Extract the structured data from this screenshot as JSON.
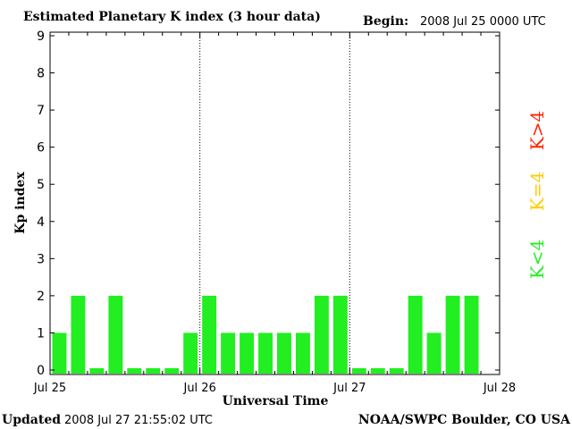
{
  "header": {
    "title": "Estimated Planetary K index (3 hour data)",
    "begin_label": "Begin:",
    "begin_value": "2008 Jul 25 0000 UTC"
  },
  "footer": {
    "updated_label": "Updated",
    "updated_value": "2008 Jul 27 21:55:02 UTC",
    "source": "NOAA/SWPC Boulder, CO USA"
  },
  "legend": {
    "items": [
      {
        "label": "K<4",
        "color": "#22ee22"
      },
      {
        "label": "K=4",
        "color": "#ffcc00"
      },
      {
        "label": "K>4",
        "color": "#ff2200"
      }
    ]
  },
  "chart_data": {
    "type": "bar",
    "title": "Estimated Planetary K index (3 hour data)",
    "xlabel": "Universal Time",
    "ylabel": "Kp index",
    "ylim": [
      0,
      9
    ],
    "yticks": [
      0,
      1,
      2,
      3,
      4,
      5,
      6,
      7,
      8,
      9
    ],
    "x_tick_labels": [
      "Jul 25",
      "Jul 26",
      "Jul 27",
      "Jul 28"
    ],
    "grid": false,
    "day_separators": [
      "Jul 26",
      "Jul 27"
    ],
    "bar_color": "#22ee22",
    "interval_hours": 3,
    "values": [
      1,
      2,
      0,
      2,
      0,
      0,
      0,
      1,
      2,
      1,
      1,
      1,
      1,
      1,
      2,
      2,
      0,
      0,
      0,
      2,
      1,
      2,
      2
    ]
  }
}
